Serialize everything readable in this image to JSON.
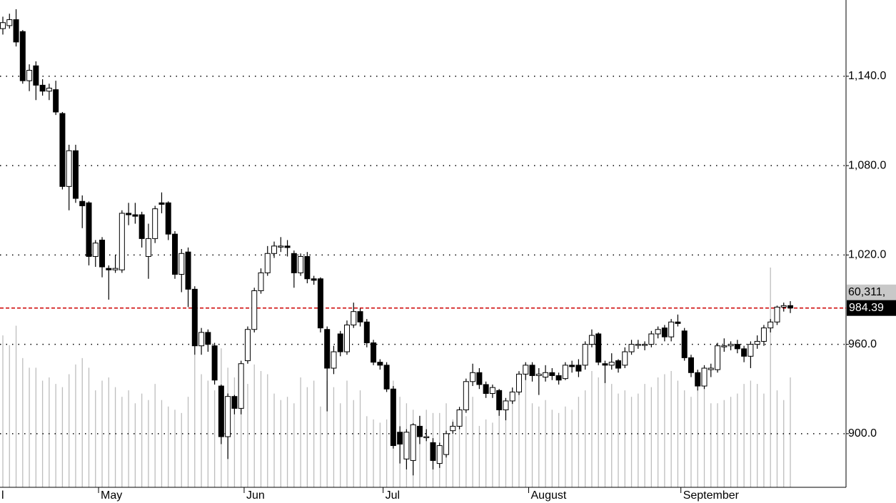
{
  "chart_data": {
    "type": "candlestick",
    "categories": [
      "l",
      null,
      null,
      null,
      null,
      null,
      null,
      null,
      null,
      null,
      null,
      null,
      null,
      null,
      null,
      "May",
      null,
      null,
      null,
      null,
      null,
      null,
      null,
      null,
      null,
      null,
      null,
      null,
      null,
      null,
      null,
      null,
      null,
      null,
      null,
      null,
      null,
      "Jun",
      null,
      null,
      null,
      null,
      null,
      null,
      null,
      null,
      null,
      null,
      null,
      null,
      null,
      null,
      null,
      null,
      null,
      null,
      null,
      null,
      "Jul",
      null,
      null,
      null,
      null,
      null,
      null,
      null,
      null,
      null,
      null,
      null,
      null,
      null,
      null,
      null,
      null,
      null,
      null,
      null,
      null,
      null,
      "August",
      null,
      null,
      null,
      null,
      null,
      null,
      null,
      null,
      null,
      null,
      null,
      null,
      null,
      null,
      null,
      null,
      null,
      null,
      null,
      null,
      null,
      null,
      "September",
      null,
      null,
      null,
      null,
      null,
      null,
      null,
      null,
      null,
      null,
      null,
      null,
      null,
      null,
      null,
      null
    ],
    "open": [
      1172,
      1174,
      1178,
      1170,
      1137,
      1147,
      1134,
      1130,
      1131,
      1115,
      1066,
      1090,
      1056,
      1055,
      1019,
      1030,
      1011,
      1010,
      1010,
      1048,
      1047,
      1047,
      1019,
      1031,
      1055,
      1055,
      1034,
      1007,
      1022,
      997,
      959,
      968,
      959,
      932,
      898,
      925,
      917,
      949,
      970,
      996,
      1008,
      1021,
      1026,
      1026,
      1021,
      1008,
      1019,
      1004,
      1004,
      970,
      944,
      967,
      955,
      973,
      982,
      975,
      961,
      948,
      946,
      930,
      901,
      883,
      882,
      905,
      898,
      894,
      880,
      886,
      902,
      905,
      916,
      935,
      941,
      933,
      927,
      929,
      916,
      922,
      928,
      940,
      946,
      939,
      938,
      941,
      939,
      937,
      946,
      946,
      946,
      960,
      967,
      947,
      946,
      949,
      946,
      955,
      960,
      960,
      960,
      967,
      971,
      965,
      975,
      969,
      951,
      941,
      932,
      943,
      943,
      959,
      959,
      960,
      957,
      952,
      960,
      962,
      971,
      975,
      985,
      986
    ],
    "high": [
      1180,
      1182,
      1185,
      1171,
      1148,
      1150,
      1138,
      1135,
      1137,
      1116,
      1094,
      1094,
      1060,
      1056,
      1030,
      1032,
      1013,
      1020,
      1050,
      1055,
      1055,
      1049,
      1041,
      1053,
      1062,
      1056,
      1036,
      1024,
      1025,
      999,
      971,
      970,
      961,
      933,
      927,
      926,
      949,
      972,
      998,
      1011,
      1026,
      1029,
      1032,
      1030,
      1023,
      1021,
      1022,
      1006,
      1005,
      972,
      959,
      969,
      976,
      988,
      984,
      977,
      963,
      950,
      948,
      932,
      905,
      903,
      907,
      912,
      903,
      897,
      894,
      902,
      908,
      918,
      937,
      947,
      944,
      935,
      933,
      930,
      924,
      931,
      942,
      948,
      948,
      944,
      946,
      944,
      941,
      948,
      949,
      950,
      962,
      970,
      968,
      949,
      954,
      950,
      958,
      963,
      963,
      962,
      969,
      972,
      973,
      977,
      980,
      971,
      953,
      943,
      946,
      947,
      961,
      964,
      962,
      963,
      959,
      962,
      966,
      973,
      977,
      986,
      988,
      989
    ],
    "low": [
      1168,
      1172,
      1160,
      1135,
      1130,
      1124,
      1127,
      1124,
      1114,
      1064,
      1050,
      1055,
      1038,
      1013,
      1012,
      1005,
      990,
      1008,
      1008,
      1040,
      1041,
      1025,
      1004,
      1028,
      1048,
      1030,
      1004,
      995,
      985,
      953,
      953,
      955,
      933,
      893,
      883,
      913,
      913,
      947,
      968,
      994,
      1006,
      1018,
      1022,
      1019,
      998,
      1006,
      1001,
      1000,
      968,
      915,
      940,
      952,
      953,
      971,
      972,
      958,
      946,
      943,
      928,
      890,
      880,
      876,
      872,
      893,
      895,
      876,
      877,
      884,
      900,
      903,
      914,
      932,
      930,
      924,
      924,
      912,
      909,
      920,
      926,
      936,
      935,
      926,
      935,
      936,
      933,
      936,
      941,
      938,
      943,
      958,
      946,
      934,
      943,
      941,
      944,
      953,
      957,
      956,
      958,
      964,
      962,
      962,
      972,
      949,
      938,
      929,
      930,
      938,
      941,
      955,
      956,
      954,
      948,
      944,
      957,
      959,
      968,
      973,
      982,
      981
    ],
    "close": [
      1176,
      1178,
      1163,
      1137,
      1144,
      1134,
      1130,
      1132,
      1116,
      1066,
      1090,
      1058,
      1053,
      1019,
      1028,
      1012,
      1010,
      1011,
      1048,
      1047,
      1046,
      1031,
      1031,
      1051,
      1054,
      1034,
      1007,
      1021,
      997,
      959,
      968,
      960,
      936,
      898,
      925,
      917,
      947,
      970,
      996,
      1008,
      1021,
      1026,
      1026,
      1025,
      1008,
      1019,
      1004,
      1003,
      971,
      944,
      955,
      955,
      973,
      982,
      975,
      961,
      948,
      946,
      930,
      892,
      893,
      901,
      906,
      898,
      898,
      882,
      892,
      900,
      905,
      916,
      935,
      941,
      933,
      927,
      931,
      916,
      922,
      928,
      940,
      946,
      939,
      940,
      941,
      939,
      936,
      946,
      945,
      942,
      960,
      966,
      948,
      946,
      948,
      944,
      955,
      960,
      960,
      960,
      967,
      970,
      965,
      975,
      974,
      951,
      941,
      932,
      944,
      944,
      959,
      959,
      960,
      957,
      952,
      960,
      962,
      971,
      975,
      985,
      986,
      984.39
    ],
    "volume": [
      47,
      44,
      50,
      40,
      37,
      37,
      33,
      34,
      32,
      31,
      35,
      38,
      40,
      37,
      30,
      33,
      34,
      31,
      28,
      30,
      26,
      29,
      27,
      32,
      27,
      25,
      24,
      23,
      28,
      41,
      35,
      33,
      30,
      43,
      37,
      34,
      31,
      32,
      38,
      36,
      35,
      29,
      27,
      28,
      26,
      34,
      31,
      33,
      25,
      33,
      31,
      26,
      33,
      27,
      30,
      22,
      21,
      20,
      21,
      33,
      28,
      26,
      24,
      22,
      24,
      23,
      23,
      26,
      21,
      21,
      22,
      28,
      19,
      21,
      20,
      25,
      23,
      28,
      30,
      37,
      26,
      25,
      27,
      24,
      23,
      25,
      24,
      28,
      30,
      36,
      34,
      33,
      32,
      29,
      30,
      28,
      29,
      32,
      31,
      34,
      35,
      36,
      33,
      30,
      28,
      30,
      31,
      26,
      26,
      27,
      28,
      29,
      32,
      33,
      32,
      29,
      68,
      30,
      27,
      34
    ],
    "ylim": [
      864,
      1191.2
    ],
    "yticks": [
      {
        "value": 900,
        "label": "900.0"
      },
      {
        "value": 960,
        "label": "960.0"
      },
      {
        "value": 1020,
        "label": "1,020.0"
      },
      {
        "value": 1080,
        "label": "1,080.0"
      },
      {
        "value": 1140,
        "label": "1,140.0"
      }
    ],
    "y2lim": [
      0,
      150.8
    ],
    "y2ticks": [
      {
        "value": 60.311,
        "label": "60,311,"
      }
    ],
    "grid": true,
    "up_color": "#ffffff",
    "down_color": "#000000",
    "volume_color": "#bdbdbd",
    "last_line_color": "#cc0000"
  }
}
